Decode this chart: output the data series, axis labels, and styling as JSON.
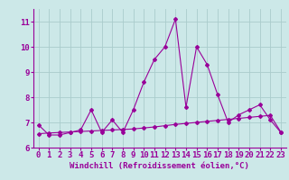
{
  "x": [
    0,
    1,
    2,
    3,
    4,
    5,
    6,
    7,
    8,
    9,
    10,
    11,
    12,
    13,
    14,
    15,
    16,
    17,
    18,
    19,
    20,
    21,
    22,
    23
  ],
  "y_line": [
    6.9,
    6.5,
    6.5,
    6.6,
    6.7,
    7.5,
    6.6,
    7.1,
    6.6,
    7.5,
    8.6,
    9.5,
    10.0,
    11.1,
    7.6,
    10.0,
    9.3,
    8.1,
    7.0,
    7.3,
    7.5,
    7.7,
    7.1,
    6.6
  ],
  "y_trend": [
    6.55,
    6.58,
    6.6,
    6.62,
    6.64,
    6.66,
    6.68,
    6.7,
    6.72,
    6.74,
    6.78,
    6.82,
    6.87,
    6.92,
    6.96,
    7.0,
    7.04,
    7.08,
    7.12,
    7.16,
    7.2,
    7.24,
    7.28,
    6.62
  ],
  "line_color": "#990099",
  "marker": "D",
  "marker_size": 2,
  "background_color": "#cce8e8",
  "grid_color": "#aacccc",
  "xlim": [
    -0.5,
    23.5
  ],
  "ylim": [
    6.0,
    11.5
  ],
  "yticks": [
    6,
    7,
    8,
    9,
    10,
    11
  ],
  "xticks": [
    0,
    1,
    2,
    3,
    4,
    5,
    6,
    7,
    8,
    9,
    10,
    11,
    12,
    13,
    14,
    15,
    16,
    17,
    18,
    19,
    20,
    21,
    22,
    23
  ],
  "xlabel": "Windchill (Refroidissement éolien,°C)",
  "xlabel_fontsize": 6.5,
  "tick_fontsize": 6.5,
  "tick_color": "#990099"
}
